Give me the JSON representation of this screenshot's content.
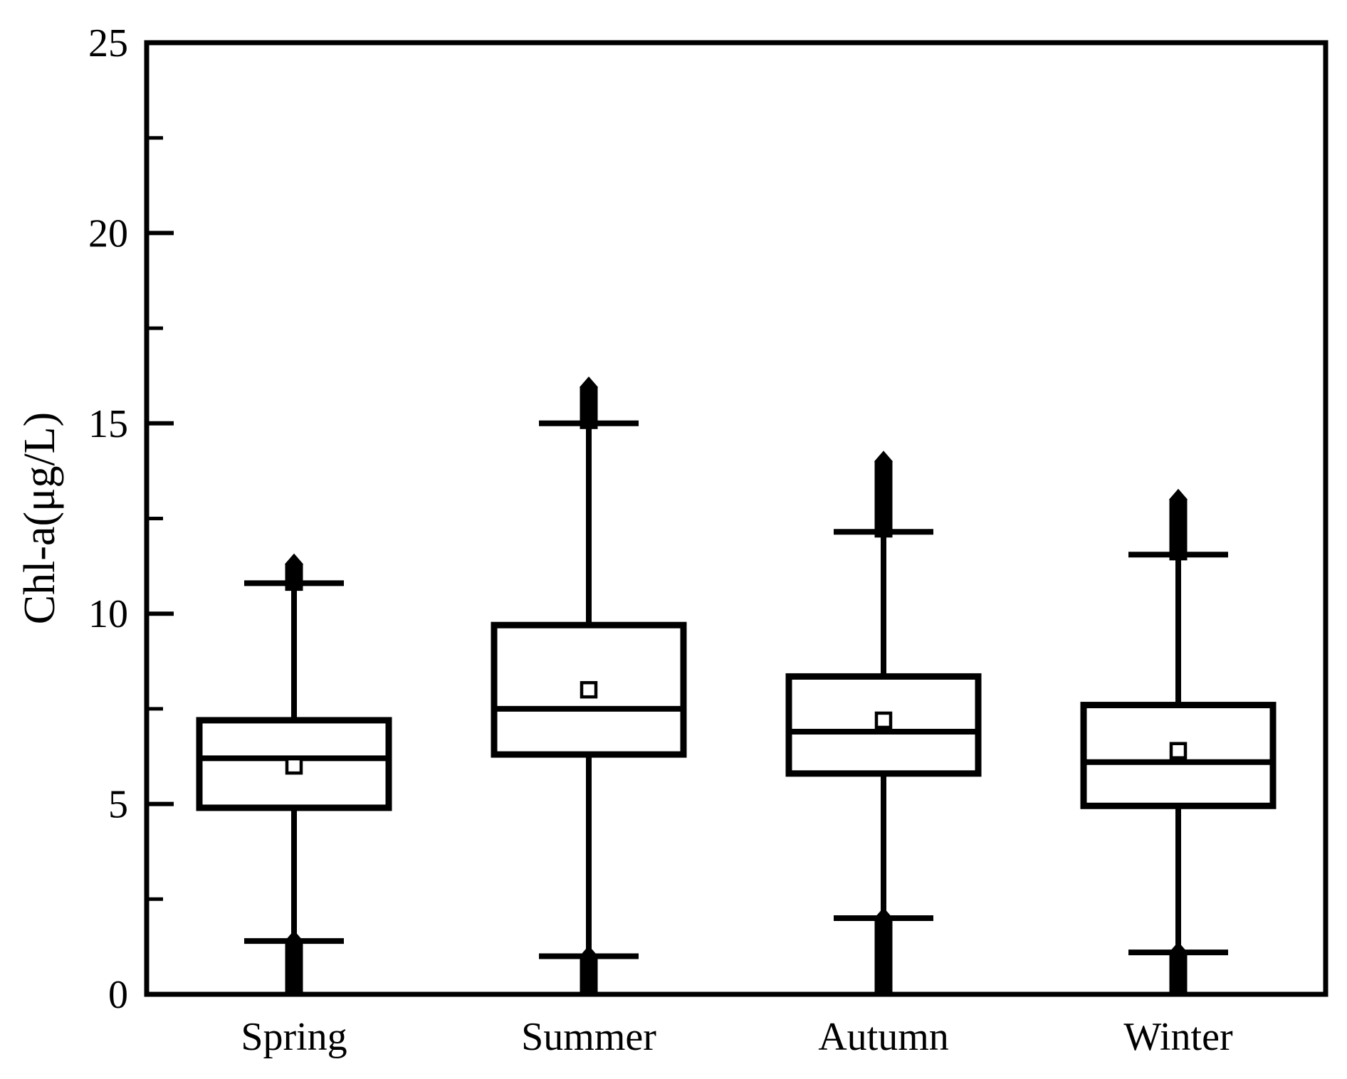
{
  "figure": {
    "background_color": "#ffffff",
    "ink_color": "#000000",
    "box_fill_color": "#ffffff"
  },
  "chart_data": {
    "type": "box",
    "title": "",
    "xlabel": "",
    "ylabel": "Chl-a(μg/L)",
    "ylim": [
      0,
      25
    ],
    "y_major_ticks": [
      0,
      5,
      10,
      15,
      20,
      25
    ],
    "y_minor_tick_step": 2.5,
    "grid": false,
    "legend": false,
    "frame": "full-box",
    "categories": [
      "Spring",
      "Summer",
      "Autumn",
      "Winter"
    ],
    "series": [
      {
        "name": "Spring",
        "whisker_low": 1.4,
        "q1": 4.9,
        "median": 6.2,
        "mean": 6.0,
        "q3": 7.2,
        "whisker_high": 10.8,
        "outliers_high_range": [
          10.6,
          11.3
        ],
        "outliers_low_range": [
          0,
          1.4
        ]
      },
      {
        "name": "Summer",
        "whisker_low": 1.0,
        "q1": 6.3,
        "median": 7.5,
        "mean": 8.0,
        "q3": 9.7,
        "whisker_high": 15.0,
        "outliers_high_range": [
          14.85,
          15.95
        ],
        "outliers_low_range": [
          0,
          1.0
        ]
      },
      {
        "name": "Autumn",
        "whisker_low": 2.0,
        "q1": 5.8,
        "median": 6.9,
        "mean": 7.2,
        "q3": 8.35,
        "whisker_high": 12.15,
        "outliers_high_range": [
          12.0,
          14.0
        ],
        "outliers_low_range": [
          0,
          2.0
        ]
      },
      {
        "name": "Winter",
        "whisker_low": 1.1,
        "q1": 4.95,
        "median": 6.1,
        "mean": 6.4,
        "q3": 7.6,
        "whisker_high": 11.55,
        "outliers_high_range": [
          11.4,
          13.0
        ],
        "outliers_low_range": [
          0,
          1.1
        ]
      }
    ]
  }
}
